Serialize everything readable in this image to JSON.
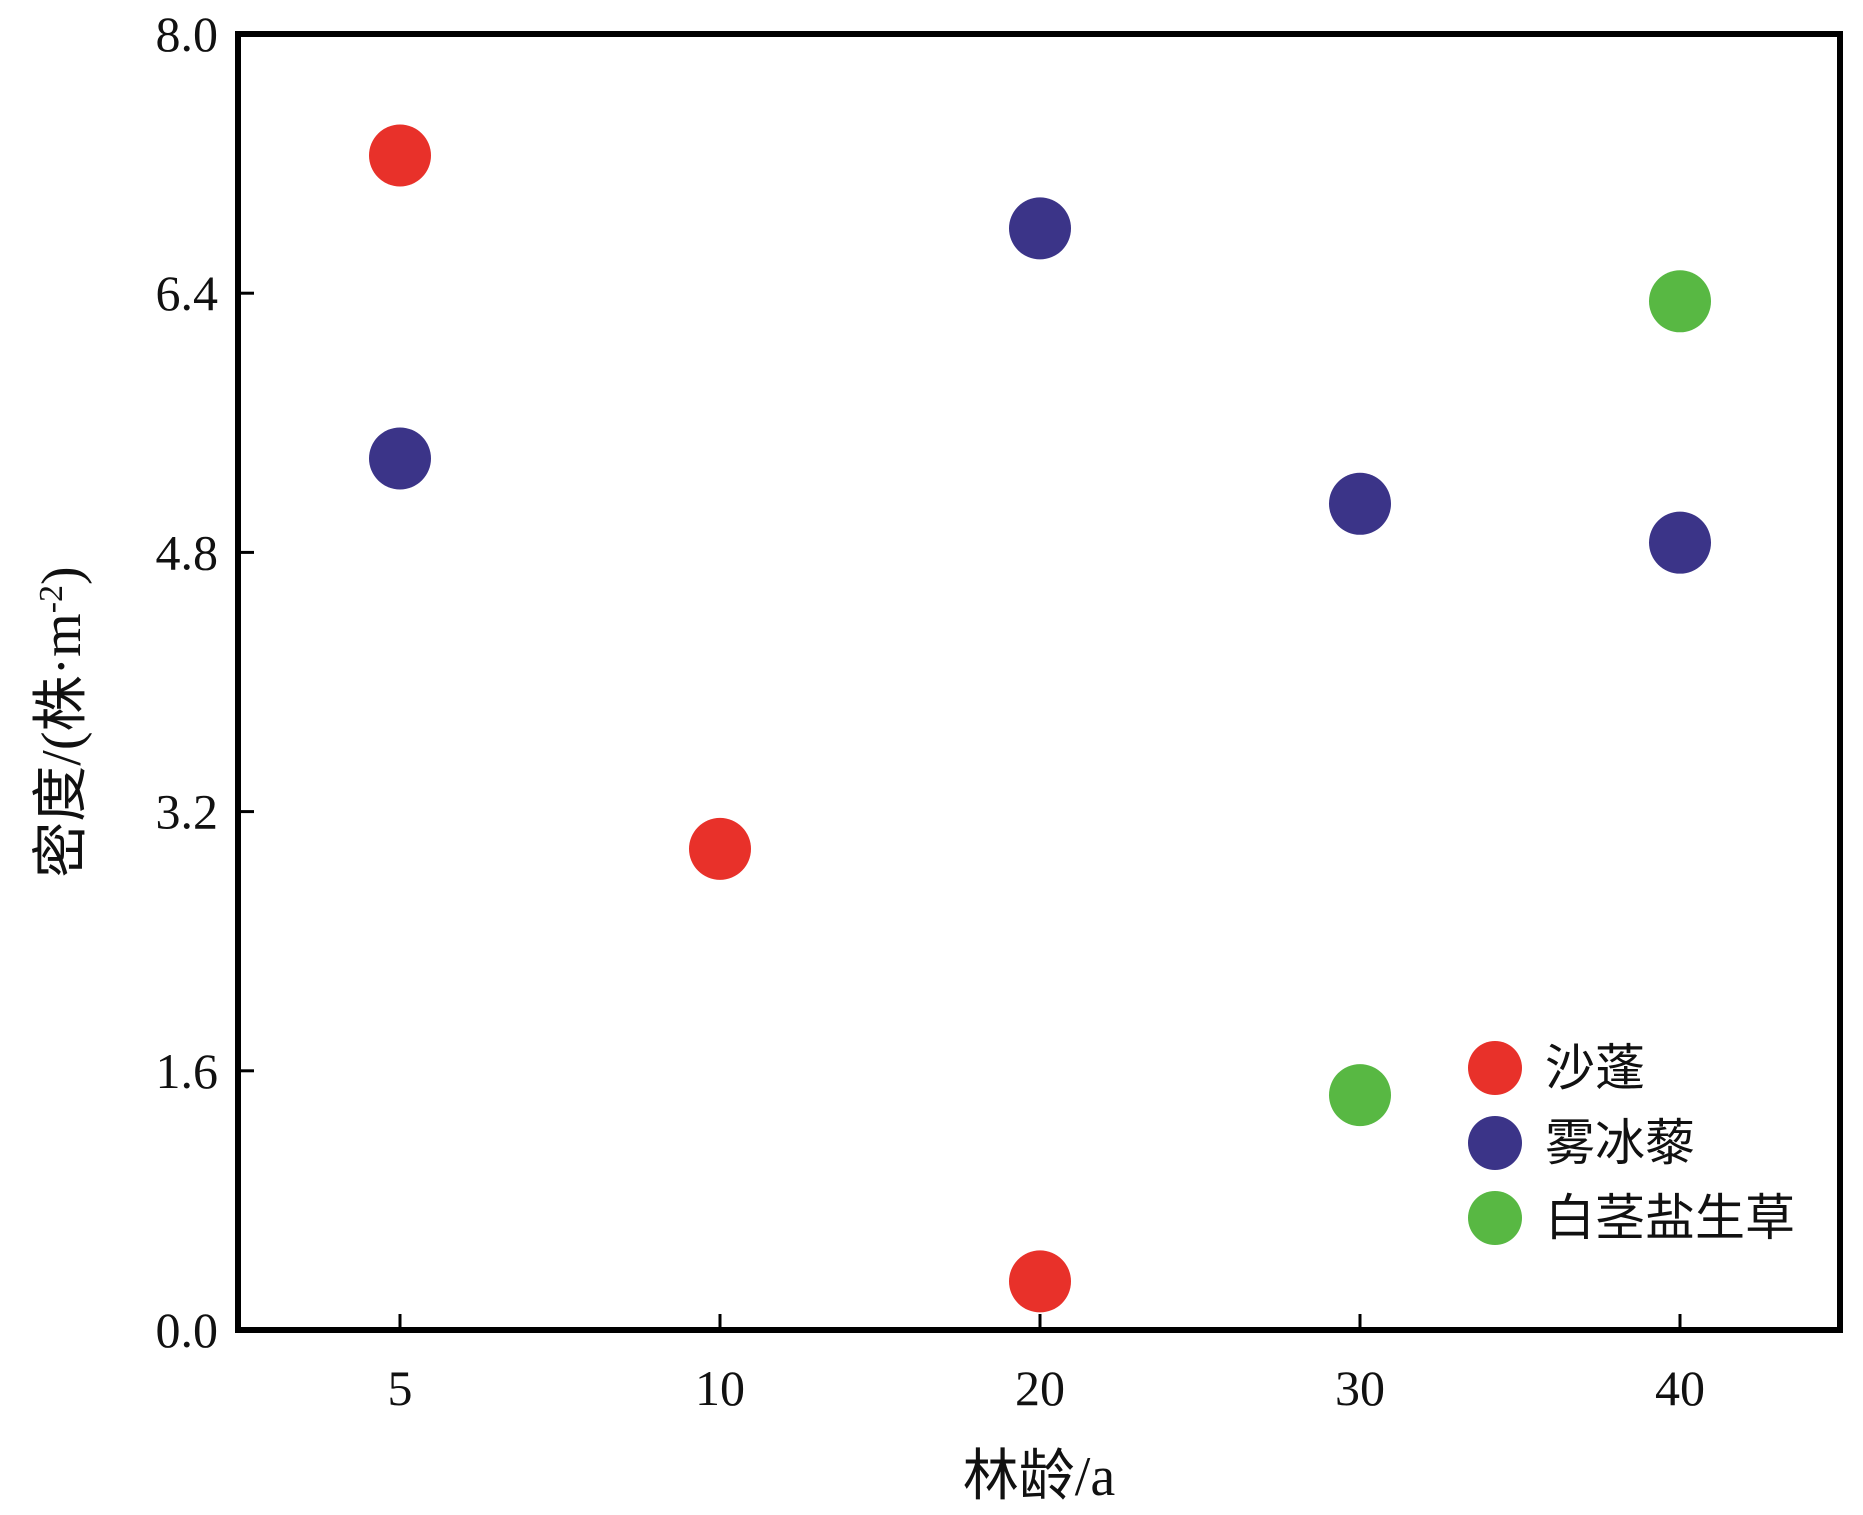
{
  "chart_data": {
    "type": "scatter",
    "title": "",
    "xlabel": "林龄/a",
    "ylabel_main": "密度/(株·m",
    "ylabel_sup": "-2",
    "ylabel_end": ")",
    "x_scale": "categorical",
    "categories": [
      "5",
      "10",
      "20",
      "30",
      "40"
    ],
    "ylim": [
      0,
      8.0
    ],
    "yticks": [
      "0.0",
      "1.6",
      "3.2",
      "4.8",
      "6.4",
      "8.0"
    ],
    "grid": false,
    "legend_position": "bottom-right",
    "series": [
      {
        "name": "沙蓬",
        "color": "#e8312a",
        "points": [
          {
            "x": "5",
            "y": 7.25
          },
          {
            "x": "10",
            "y": 2.97
          },
          {
            "x": "20",
            "y": 0.3
          }
        ]
      },
      {
        "name": "雾冰藜",
        "color": "#3b3488",
        "points": [
          {
            "x": "5",
            "y": 5.38
          },
          {
            "x": "20",
            "y": 6.8
          },
          {
            "x": "30",
            "y": 5.1
          },
          {
            "x": "40",
            "y": 4.86
          }
        ]
      },
      {
        "name": "白茎盐生草",
        "color": "#58b843",
        "points": [
          {
            "x": "30",
            "y": 1.45
          },
          {
            "x": "40",
            "y": 6.35
          }
        ]
      }
    ]
  }
}
